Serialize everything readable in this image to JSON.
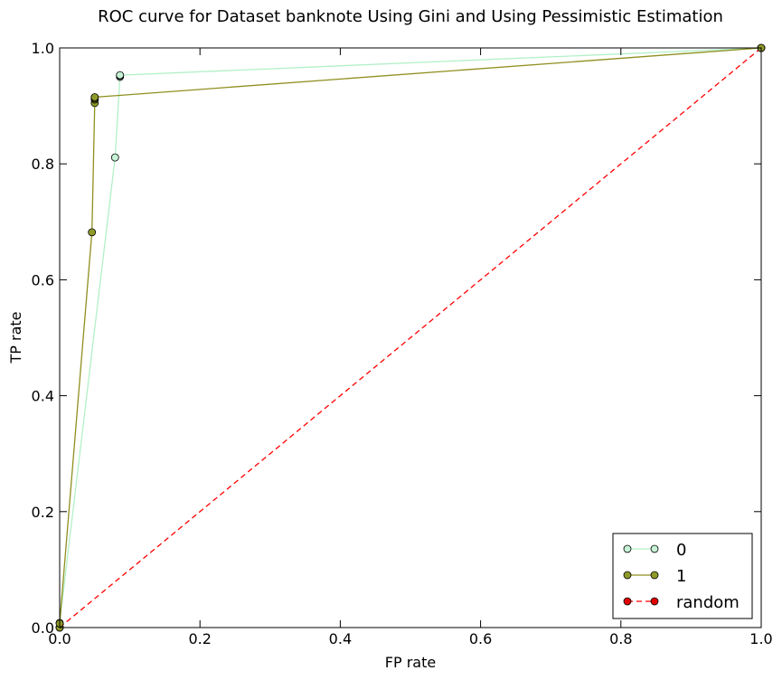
{
  "chart_data": {
    "type": "line",
    "title": "ROC curve for Dataset banknote Using Gini and Using Pessimistic Estimation",
    "xlabel": "FP rate",
    "ylabel": "TP rate",
    "xlim": [
      0.0,
      1.0
    ],
    "ylim": [
      0.0,
      1.0
    ],
    "xticks": [
      "0.0",
      "0.2",
      "0.4",
      "0.6",
      "0.8",
      "1.0"
    ],
    "yticks": [
      "0.0",
      "0.2",
      "0.4",
      "0.6",
      "0.8",
      "1.0"
    ],
    "grid": false,
    "legend_position": "bottom-right",
    "series": [
      {
        "name": "0",
        "color": "#b3f0c8",
        "marker_fill": "#c6f2d6",
        "line_style": "solid",
        "x": [
          0.0,
          0.0,
          0.079,
          0.086,
          0.086,
          0.086,
          1.0
        ],
        "y": [
          0.0,
          0.008,
          0.811,
          0.95,
          0.952,
          0.953,
          1.0
        ]
      },
      {
        "name": "1",
        "color": "#8f8f1f",
        "marker_fill": "#8f9a2a",
        "line_style": "solid",
        "x": [
          0.0,
          0.0,
          0.046,
          0.05,
          0.05,
          0.05,
          0.05,
          1.0
        ],
        "y": [
          0.0,
          0.007,
          0.682,
          0.905,
          0.911,
          0.913,
          0.915,
          1.0
        ]
      },
      {
        "name": "random",
        "color": "#ff0000",
        "marker_fill": "#e00000",
        "line_style": "dashed",
        "x": [
          0.0,
          1.0
        ],
        "y": [
          0.0,
          1.0
        ]
      }
    ]
  }
}
